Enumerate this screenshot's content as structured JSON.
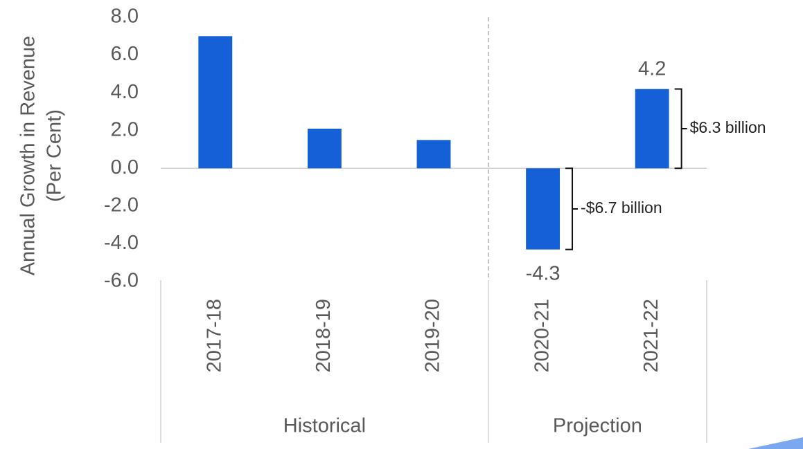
{
  "chart_data": {
    "type": "bar",
    "ylabel": [
      "Annual Growth in Revenue",
      "(Per Cent)"
    ],
    "categories": [
      "2017-18",
      "2018-19",
      "2019-20",
      "2020-21",
      "2021-22"
    ],
    "groups": [
      "Historical",
      "Projection"
    ],
    "values": [
      7.0,
      2.1,
      1.5,
      -4.3,
      4.2
    ],
    "value_labels": [
      null,
      null,
      null,
      "-4.3",
      "4.2"
    ],
    "annotations": [
      "-$6.7 billion",
      "$6.3 billion"
    ],
    "color": "#1560d6",
    "ylim": [
      -6,
      8
    ],
    "yticks": [
      {
        "value": -6,
        "label": "-6.0"
      },
      {
        "value": -4,
        "label": "-4.0"
      },
      {
        "value": -2,
        "label": "-2.0"
      },
      {
        "value": 0,
        "label": "0.0"
      },
      {
        "value": 2,
        "label": "2.0"
      },
      {
        "value": 4,
        "label": "4.0"
      },
      {
        "value": 6,
        "label": "6.0"
      },
      {
        "value": 8,
        "label": "8.0"
      }
    ]
  }
}
